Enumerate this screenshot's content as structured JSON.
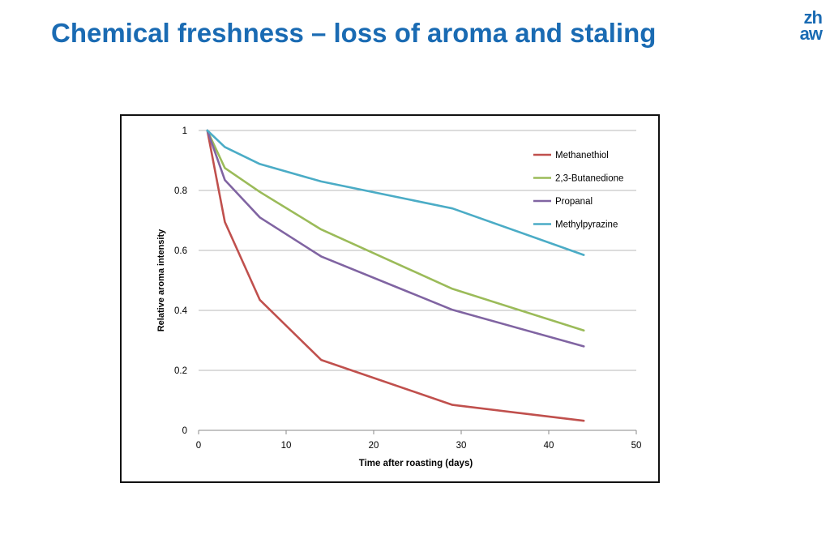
{
  "slide": {
    "title": "Chemical freshness – loss of aroma and staling",
    "logo_top": "zh",
    "logo_bottom": "aw"
  },
  "colors": {
    "title": "#1a6bb3",
    "gridline": "#b8b8b8"
  },
  "chart_data": {
    "type": "line",
    "title": "",
    "xlabel": "Time after roasting  (days)",
    "ylabel": "Relative aroma intensity",
    "xlim": [
      0,
      50
    ],
    "ylim": [
      0,
      1
    ],
    "xticks": [
      0,
      10,
      20,
      30,
      40,
      50
    ],
    "yticks": [
      0,
      0.2,
      0.4,
      0.6,
      0.8,
      1
    ],
    "ytick_labels": [
      "0",
      "0.2",
      "0.4",
      "0.6",
      "0.8",
      "1"
    ],
    "grid": "horizontal",
    "legend_position": "top-right",
    "series": [
      {
        "name": "Methanethiol",
        "color": "#c0504d",
        "x": [
          1,
          3,
          7,
          14,
          29,
          44
        ],
        "y": [
          1.0,
          0.695,
          0.435,
          0.235,
          0.085,
          0.032
        ]
      },
      {
        "name": "2,3-Butanedione",
        "color": "#9bbb59",
        "x": [
          1,
          3,
          7,
          14,
          29,
          44
        ],
        "y": [
          1.0,
          0.875,
          0.795,
          0.67,
          0.472,
          0.333
        ]
      },
      {
        "name": "Propanal",
        "color": "#8064a2",
        "x": [
          1,
          3,
          7,
          14,
          29,
          44
        ],
        "y": [
          1.0,
          0.835,
          0.71,
          0.58,
          0.402,
          0.28
        ]
      },
      {
        "name": "Methylpyrazine",
        "color": "#4bacc6",
        "x": [
          1,
          3,
          7,
          14,
          29,
          44
        ],
        "y": [
          1.0,
          0.945,
          0.888,
          0.83,
          0.74,
          0.585
        ]
      }
    ]
  }
}
